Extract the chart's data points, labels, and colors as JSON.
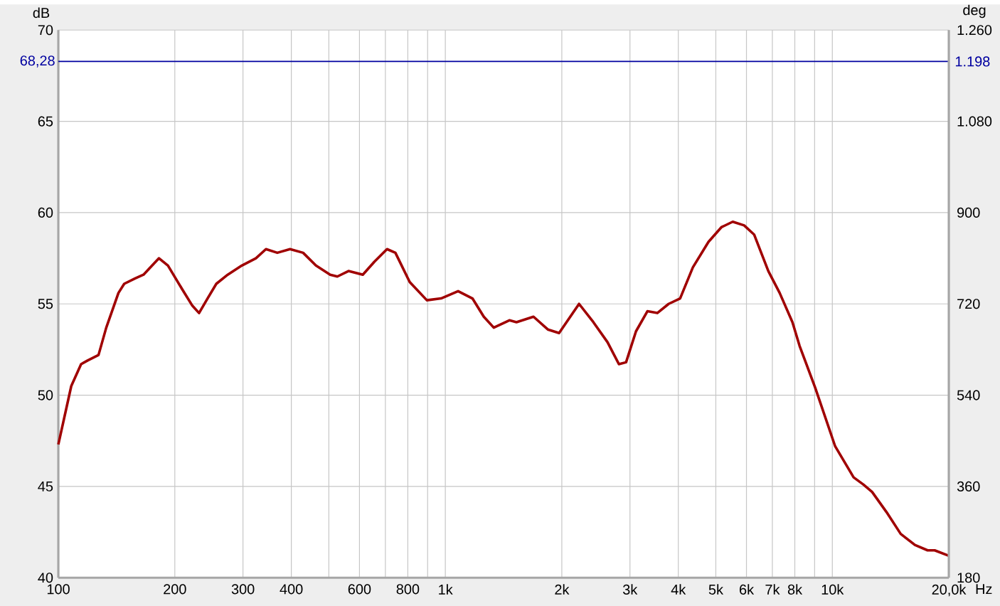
{
  "chart_data": {
    "type": "line",
    "xlabel": "Hz",
    "ylabel": "dB",
    "y2label": "deg",
    "log": "x",
    "grid": true,
    "marker": "none",
    "line_style": "solid",
    "xlim": [
      100,
      20000
    ],
    "ylim": [
      40,
      70
    ],
    "y2lim": [
      180,
      1260
    ],
    "xticks": [
      100,
      200,
      300,
      400,
      {
        "value": 500,
        "label": null
      },
      600,
      {
        "value": 700,
        "label": null
      },
      800,
      {
        "value": 900,
        "label": null
      },
      {
        "value": 1000,
        "label": "1k"
      },
      {
        "value": 2000,
        "label": "2k"
      },
      {
        "value": 3000,
        "label": "3k"
      },
      {
        "value": 4000,
        "label": "4k"
      },
      {
        "value": 5000,
        "label": "5k"
      },
      {
        "value": 6000,
        "label": "6k"
      },
      {
        "value": 7000,
        "label": "7k"
      },
      {
        "value": 8000,
        "label": "8k"
      },
      {
        "value": 9000,
        "label": null
      },
      {
        "value": 10000,
        "label": "10k"
      },
      {
        "value": 20000,
        "label": "20,0k"
      }
    ],
    "yticks": [
      40,
      45,
      50,
      55,
      60,
      65,
      70
    ],
    "y2ticks": [
      180,
      360,
      540,
      720,
      900,
      {
        "value": 1080,
        "label": "1.080"
      },
      {
        "value": 1260,
        "label": "1.260"
      }
    ],
    "ref_lines": [
      {
        "axis": "y",
        "value": 68.28,
        "label": "68,28",
        "color": "#0000a0"
      }
    ],
    "annotations": [
      {
        "text": "1.198",
        "x": 20000,
        "y": 68.28
      }
    ],
    "series": [
      {
        "color": "#a00000",
        "x": [
          100,
          108,
          114.5,
          119,
          127,
          133,
          143,
          148,
          158,
          166,
          182,
          192,
          209,
          222,
          231,
          243,
          256,
          274,
          298,
          324,
          344,
          368,
          397,
          429,
          463,
          504,
          526,
          562,
          612,
          655,
          707,
          743,
          809,
          896,
          975,
          1079,
          1175,
          1257,
          1334,
          1464,
          1527,
          1690,
          1840,
          1968,
          2216,
          2413,
          2625,
          2809,
          2931,
          3110,
          3328,
          3530,
          3777,
          4043,
          4362,
          4787,
          5168,
          5529,
          5917,
          6279,
          6834,
          7311,
          7889,
          8230,
          9035,
          10170,
          11350,
          12040,
          12670,
          13800,
          15020,
          16340,
          17630,
          18390,
          20000
        ],
        "values": [
          47.3,
          50.5,
          51.7,
          51.9,
          52.2,
          53.7,
          55.6,
          56.1,
          56.4,
          56.6,
          57.5,
          57.1,
          55.8,
          54.9,
          54.5,
          55.3,
          56.1,
          56.6,
          57.1,
          57.5,
          58.0,
          57.8,
          58.0,
          57.8,
          57.1,
          56.6,
          56.5,
          56.8,
          56.6,
          57.3,
          58.0,
          57.8,
          56.2,
          55.2,
          55.3,
          55.7,
          55.3,
          54.3,
          53.7,
          54.1,
          54.0,
          54.3,
          53.6,
          53.4,
          55.0,
          54.0,
          52.9,
          51.7,
          51.8,
          53.5,
          54.6,
          54.5,
          55.0,
          55.3,
          57.0,
          58.4,
          59.2,
          59.5,
          59.3,
          58.8,
          56.8,
          55.6,
          54.0,
          52.7,
          50.4,
          47.2,
          45.5,
          45.1,
          44.7,
          43.6,
          42.4,
          41.8,
          41.5,
          41.5,
          41.2
        ]
      }
    ]
  }
}
